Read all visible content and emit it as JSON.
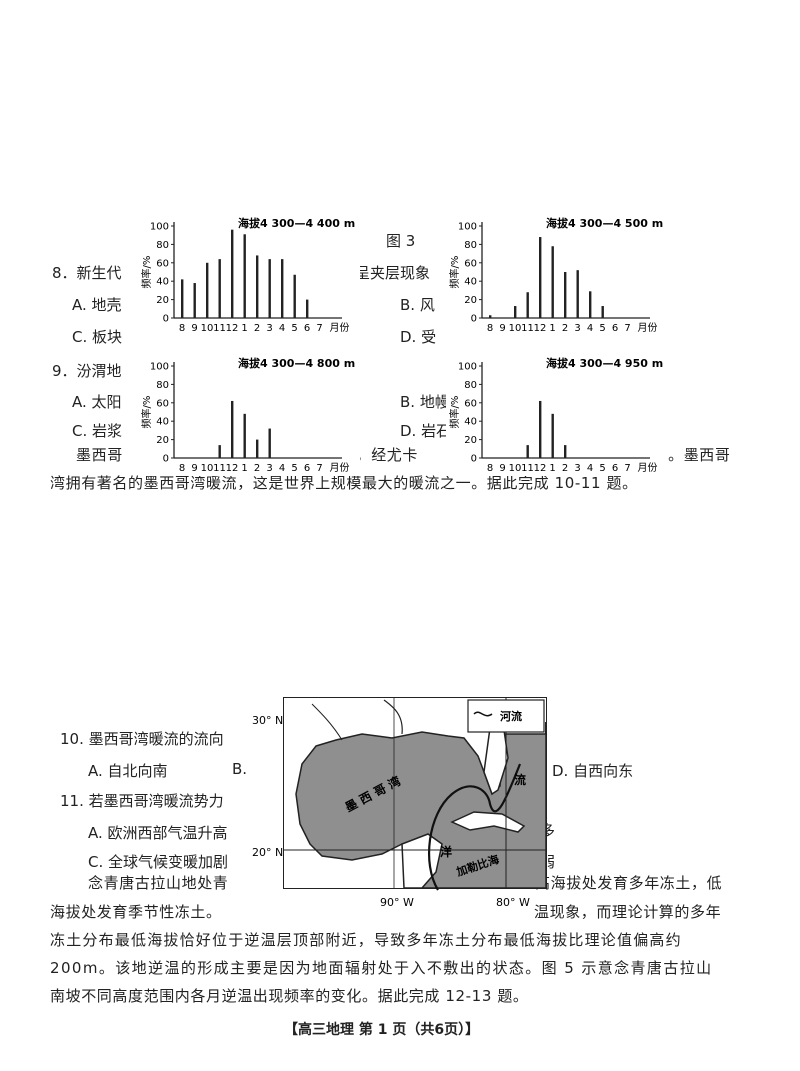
{
  "figure3": {
    "label": "图 3"
  },
  "questions": {
    "q8": {
      "stem": "8．新生代",
      "stem_tail": "现呈夹层现象",
      "a": "A. 地壳",
      "b": "B. 风",
      "c": "C. 板块",
      "d": "D. 受"
    },
    "q9": {
      "stem": "9．汾渭地",
      "a": "A. 太阳",
      "b": "B. 地幔",
      "c": "C. 岩浆",
      "d": "D. 岩石"
    },
    "passage1": {
      "line1_start": "墨西哥",
      "line1_mid": "成，经尤卡",
      "line1_end": "）。墨西哥",
      "line2": "湾拥有著名的墨西哥湾暖流，这是世界上规模最大的暖流之一。据此完成 10-11 题。"
    },
    "q10": {
      "stem": "10. 墨西哥湾暖流的流向",
      "a": "A. 自北向南",
      "b": "B.",
      "d": "D. 自西向东"
    },
    "q11": {
      "stem": "11. 若墨西哥湾暖流势力",
      "a": "A. 欧洲西部气温升高",
      "c": "C. 全球气候变暖加剧",
      "side1": "多",
      "side2": "弱"
    },
    "passage2": {
      "line1_start": "念青唐古拉山地处青",
      "line1_end": "高海拔处发育多年冻土，低",
      "line2_start": "海拔处发育季节性冻土。",
      "line2_end": "温现象，而理论计算的多年",
      "line3": "冻土分布最低海拔恰好位于逆温层顶部附近，导致多年冻土分布最低海拔比理论值偏高约",
      "line4": "200m。该地逆温的形成主要是因为地面辐射处于入不敷出的状态。图 5 示意念青唐古拉山",
      "line5": "南坡不同高度范围内各月逆温出现频率的变化。据此完成 12-13 题。"
    }
  },
  "footer": "【高三地理 第 1 页（共6页）】",
  "map": {
    "lat_top": "30° N",
    "lat_bottom": "20° N",
    "lon_left": "90° W",
    "lon_right": "80° W",
    "legend_label": "河流",
    "gulf_label": "墨 西 哥 湾",
    "current_label": "流",
    "ocean_label": "洋",
    "caribbean_label": "加勒比海"
  },
  "chart_data": [
    {
      "type": "bar",
      "title": "海拔4 300—4 400 m",
      "ylabel": "频率/%",
      "xlabel": "月份",
      "categories": [
        "8",
        "9",
        "10",
        "11",
        "12",
        "1",
        "2",
        "3",
        "4",
        "5",
        "6",
        "7"
      ],
      "values": [
        42,
        38,
        60,
        64,
        96,
        91,
        68,
        64,
        64,
        47,
        20,
        0
      ],
      "ylim": [
        0,
        100
      ],
      "yticks": [
        "0",
        "20",
        "40",
        "60",
        "80",
        "100"
      ]
    },
    {
      "type": "bar",
      "title": "海拔4 300—4 500 m",
      "ylabel": "频率/%",
      "xlabel": "月份",
      "categories": [
        "8",
        "9",
        "10",
        "11",
        "12",
        "1",
        "2",
        "3",
        "4",
        "5",
        "6",
        "7"
      ],
      "values": [
        3,
        0,
        13,
        28,
        88,
        78,
        50,
        52,
        29,
        13,
        0,
        0
      ],
      "ylim": [
        0,
        100
      ],
      "yticks": [
        "0",
        "20",
        "40",
        "60",
        "80",
        "100"
      ]
    },
    {
      "type": "bar",
      "title": "海拔4 300—4 800 m",
      "ylabel": "频率/%",
      "xlabel": "月份",
      "categories": [
        "8",
        "9",
        "10",
        "11",
        "12",
        "1",
        "2",
        "3",
        "4",
        "5",
        "6",
        "7"
      ],
      "values": [
        0,
        0,
        0,
        14,
        62,
        48,
        20,
        32,
        0,
        0,
        0,
        0
      ],
      "ylim": [
        0,
        100
      ],
      "yticks": [
        "0",
        "20",
        "40",
        "60",
        "80",
        "100"
      ]
    },
    {
      "type": "bar",
      "title": "海拔4 300—4 950 m",
      "ylabel": "频率/%",
      "xlabel": "月份",
      "categories": [
        "8",
        "9",
        "10",
        "11",
        "12",
        "1",
        "2",
        "3",
        "4",
        "5",
        "6",
        "7"
      ],
      "values": [
        0,
        0,
        0,
        14,
        62,
        48,
        14,
        0,
        0,
        0,
        0,
        0
      ],
      "ylim": [
        0,
        100
      ],
      "yticks": [
        "0",
        "20",
        "40",
        "60",
        "80",
        "100"
      ]
    }
  ]
}
